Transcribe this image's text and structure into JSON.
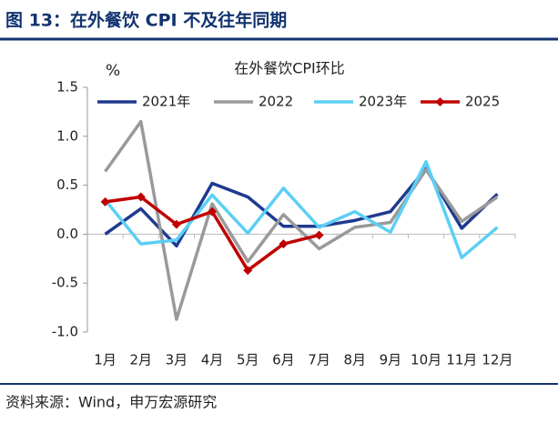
{
  "chart_data": {
    "type": "line",
    "heading": "图 13：在外餐饮 CPI 不及往年同期",
    "title": "在外餐饮CPI环比",
    "y_unit": "%",
    "source": "资料来源：Wind，申万宏源研究",
    "categories": [
      "1月",
      "2月",
      "3月",
      "4月",
      "5月",
      "6月",
      "7月",
      "8月",
      "9月",
      "10月",
      "11月",
      "12月"
    ],
    "ylim": [
      -1.0,
      1.5
    ],
    "yticks": [
      -0.5,
      {
        "value": -1.0,
        "label": "-1.0"
      },
      {
        "value": 0,
        "label": "0.0"
      },
      0.5,
      {
        "value": 1.0,
        "label": "1.0"
      },
      1.5
    ],
    "grid": false,
    "legend": "top",
    "series": [
      {
        "name": "2021年",
        "color": "#1f3a8f",
        "values": [
          0.0,
          0.26,
          -0.12,
          0.52,
          0.38,
          0.08,
          0.08,
          0.14,
          0.23,
          0.67,
          0.06,
          0.41
        ]
      },
      {
        "name": "2022",
        "color": "#9a9a9a",
        "values": [
          0.64,
          1.15,
          -0.87,
          0.31,
          -0.28,
          0.2,
          -0.15,
          0.07,
          0.12,
          0.66,
          0.13,
          0.38
        ]
      },
      {
        "name": "2023年",
        "color": "#5ccff5",
        "values": [
          0.35,
          -0.1,
          -0.06,
          0.4,
          0.01,
          0.47,
          0.07,
          0.23,
          0.02,
          0.74,
          -0.24,
          0.07
        ]
      },
      {
        "name": "2025",
        "color": "#c00000",
        "marker": "diamond",
        "values": [
          0.33,
          0.38,
          0.1,
          0.23,
          -0.37,
          -0.1,
          -0.01,
          null,
          null,
          null,
          null,
          null
        ]
      }
    ]
  }
}
